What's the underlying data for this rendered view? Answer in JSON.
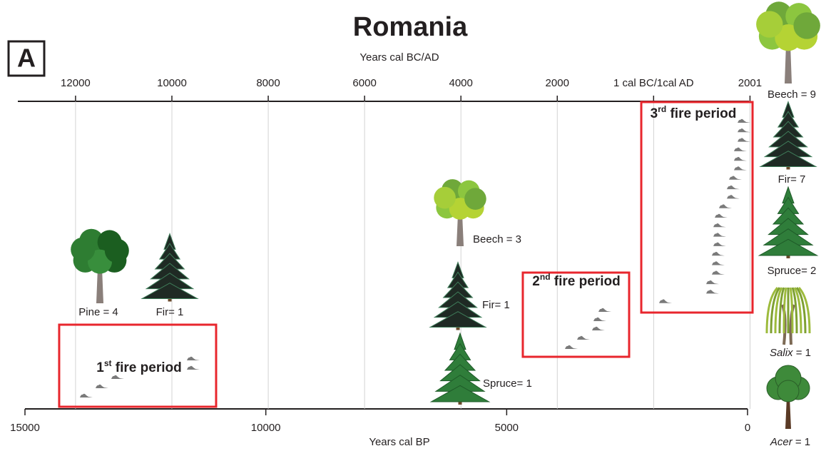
{
  "chart_data": {
    "type": "timeline",
    "title": "Romania",
    "panel_label": "A",
    "x2_label": "Years cal BC/AD",
    "xlabel": "Years cal BP",
    "xlim": [
      15000,
      0
    ],
    "xticks": [
      15000,
      10000,
      5000,
      0
    ],
    "x2lim": [
      -13050,
      1950
    ],
    "x2ticks": [
      {
        "value": -12000,
        "label": "12000"
      },
      {
        "value": -10000,
        "label": "10000"
      },
      {
        "value": -8000,
        "label": "8000"
      },
      {
        "value": -6000,
        "label": "6000"
      },
      {
        "value": -4000,
        "label": "4000"
      },
      {
        "value": -2000,
        "label": "2000"
      },
      {
        "value": 0,
        "label": "1 cal BC/1cal AD"
      },
      2001
    ],
    "grid": true,
    "box_color": "#e8262d",
    "sample_color": "#7a7a7a",
    "fire_periods": [
      {
        "ordinal": "1",
        "suffix": "st",
        "label": " fire period",
        "start_bp": 14290,
        "end_bp": 11032,
        "dates_bp": [
          11550,
          11550,
          13120,
          13446,
          13772
        ]
      },
      {
        "ordinal": "2",
        "suffix": "nd",
        "label": " fire period",
        "start_bp": 4665,
        "end_bp": 2458,
        "dates_bp": [
          3006,
          3110,
          3139,
          3450,
          3702
        ]
      },
      {
        "ordinal": "3",
        "suffix": "rd",
        "label": " fire period",
        "start_bp": 2206,
        "end_bp": -104,
        "dates_bp": [
          118,
          118,
          118,
          193,
          193,
          193,
          296,
          341,
          341,
          503,
          592,
          622,
          622,
          622,
          652,
          652,
          652,
          770,
          770,
          1747
        ]
      }
    ],
    "trees": [
      {
        "taxon": "Pine",
        "suffix": " = 4",
        "italic": false
      },
      {
        "taxon": "Fir",
        "suffix": "= 1",
        "italic": false
      },
      {
        "taxon": "Beech",
        "suffix": " = 3",
        "italic": false
      },
      {
        "taxon": "Fir",
        "suffix": "= 1",
        "italic": false
      },
      {
        "taxon": "Spruce",
        "suffix": "= 1",
        "italic": false
      },
      {
        "taxon": "Beech",
        "suffix": " = 9",
        "italic": false
      },
      {
        "taxon": "Fir",
        "suffix": "= 7",
        "italic": false
      },
      {
        "taxon": "Spruce",
        "suffix": "= 2",
        "italic": false
      },
      {
        "taxon": "Salix",
        "suffix": " = 1",
        "italic": true
      },
      {
        "taxon": "Acer",
        "suffix": " = 1",
        "italic": true
      }
    ]
  }
}
